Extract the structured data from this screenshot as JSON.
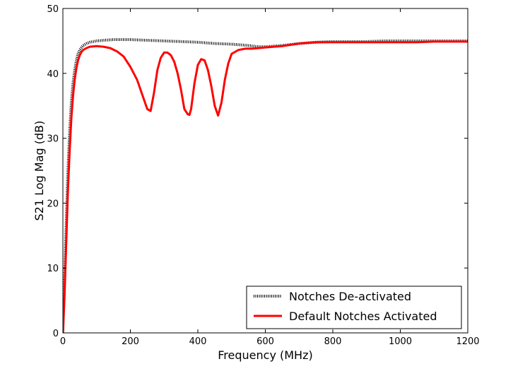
{
  "chart_data": {
    "type": "line",
    "title": "",
    "xlabel": "Frequency (MHz)",
    "ylabel": "S21 Log Mag (dB)",
    "xlim": [
      0,
      1200
    ],
    "ylim": [
      0,
      50
    ],
    "xticks": [
      "0",
      "200",
      "400",
      "600",
      "800",
      "1000",
      "1200"
    ],
    "yticks": [
      "0",
      "10",
      "20",
      "30",
      "40",
      "50"
    ],
    "grid": false,
    "legend_position": "lower-right",
    "series": [
      {
        "name": "Notches De-activated",
        "color": "#000000",
        "style": "dotted",
        "x": [
          0,
          5,
          10,
          15,
          20,
          25,
          30,
          35,
          40,
          45,
          50,
          55,
          60,
          70,
          80,
          90,
          100,
          120,
          150,
          200,
          250,
          300,
          350,
          400,
          450,
          500,
          550,
          580,
          600,
          650,
          700,
          750,
          800,
          850,
          900,
          950,
          1000,
          1050,
          1100,
          1150,
          1200
        ],
        "y": [
          0,
          8,
          17,
          25,
          31,
          35.5,
          38.5,
          40.5,
          42,
          43,
          43.6,
          44,
          44.3,
          44.6,
          44.8,
          44.9,
          45,
          45.1,
          45.2,
          45.2,
          45.1,
          45,
          44.9,
          44.8,
          44.6,
          44.5,
          44.3,
          44.1,
          44.1,
          44.3,
          44.6,
          44.8,
          44.9,
          44.9,
          44.9,
          45,
          45,
          45,
          45,
          45,
          45
        ]
      },
      {
        "name": "Default Notches Activated",
        "color": "#ff0000",
        "style": "solid",
        "x": [
          0,
          5,
          10,
          15,
          20,
          25,
          30,
          35,
          40,
          45,
          50,
          55,
          60,
          70,
          80,
          100,
          120,
          140,
          160,
          180,
          200,
          220,
          240,
          250,
          260,
          270,
          280,
          290,
          300,
          310,
          320,
          330,
          340,
          350,
          360,
          370,
          375,
          380,
          390,
          400,
          410,
          420,
          430,
          440,
          450,
          460,
          470,
          480,
          490,
          500,
          520,
          540,
          560,
          580,
          600,
          650,
          700,
          750,
          800,
          850,
          900,
          950,
          1000,
          1050,
          1100,
          1150,
          1200
        ],
        "y": [
          0,
          6,
          14,
          22,
          28,
          33,
          36.5,
          39,
          40.8,
          42,
          42.8,
          43.3,
          43.6,
          43.9,
          44.1,
          44.2,
          44.1,
          43.9,
          43.4,
          42.6,
          41,
          39,
          36,
          34.5,
          34.2,
          37,
          40.5,
          42.4,
          43.2,
          43.2,
          42.8,
          41.8,
          40,
          37.5,
          34.5,
          33.7,
          33.6,
          34.5,
          38.5,
          41.3,
          42.2,
          42,
          40.5,
          38,
          35,
          33.5,
          35.5,
          39,
          41.5,
          43,
          43.6,
          43.8,
          43.8,
          43.9,
          44,
          44.2,
          44.6,
          44.8,
          44.8,
          44.8,
          44.8,
          44.8,
          44.8,
          44.8,
          44.9,
          44.9,
          44.9
        ]
      }
    ]
  }
}
